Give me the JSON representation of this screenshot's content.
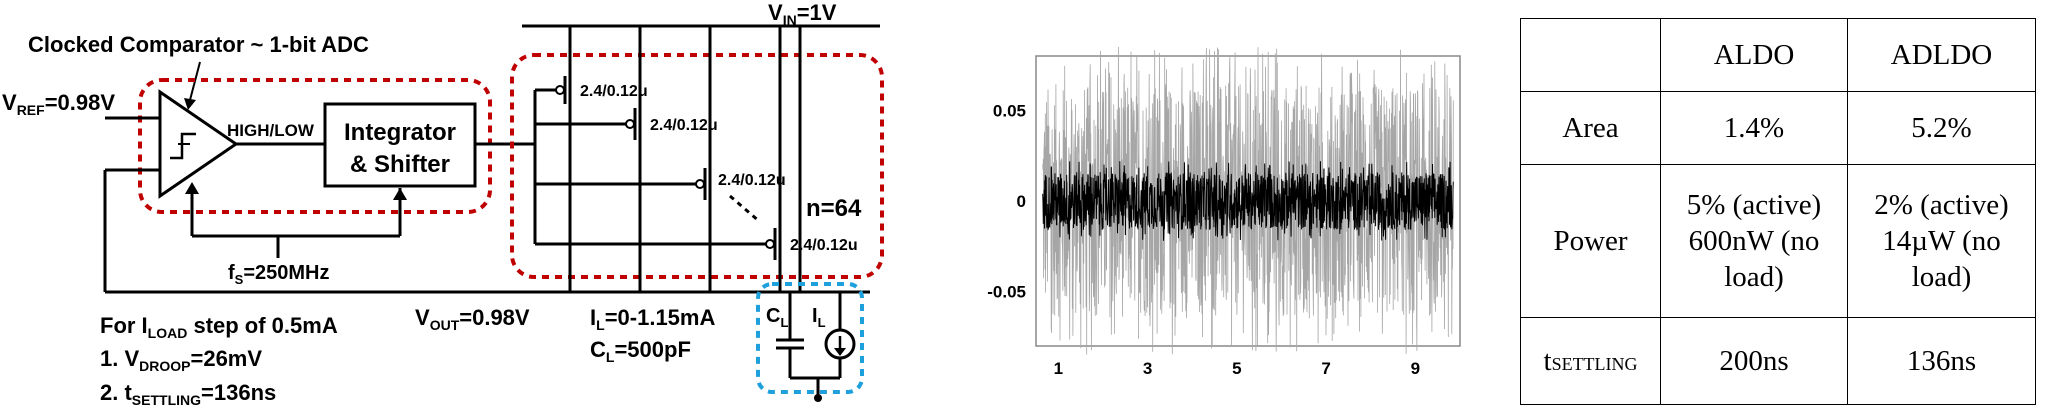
{
  "circuit": {
    "comparator_title": "Clocked Comparator ~ 1-bit ADC",
    "vref": {
      "main": "V",
      "sub": "REF",
      "value": "=0.98V"
    },
    "high_low": "HIGH/LOW",
    "integrator_line1": "Integrator",
    "integrator_line2": "& Shifter",
    "clock": {
      "main": "f",
      "sub": "S",
      "value": "=250MHz"
    },
    "vin": {
      "main": "V",
      "sub": "IN",
      "value": "=1V"
    },
    "transistor_size": "2.4/0.12u",
    "array_count": "n=64",
    "vout": {
      "main": "V",
      "sub": "OUT",
      "value": "=0.98V"
    },
    "il_range": {
      "main": "I",
      "sub": "L",
      "value": "=0-1.15mA"
    },
    "cl_value": {
      "main": "C",
      "sub": "L",
      "value": "=500pF"
    },
    "cl_label": {
      "main": "C",
      "sub": "L"
    },
    "il_label": {
      "main": "I",
      "sub": "L"
    },
    "load_step": {
      "pre": "For I",
      "sub": "LOAD",
      "post": " step of 0.5mA"
    },
    "droop": {
      "pre": "1. V",
      "sub": "DROOP",
      "post": "=26mV"
    },
    "settling": {
      "pre": "2. t",
      "sub": "SETTLING",
      "post": "=136ns"
    }
  },
  "colors": {
    "red_box": "#c00000",
    "blue_box": "#1ea0dc",
    "trace_light": "#a6a6a6",
    "trace_dark": "#000000"
  },
  "chart_data": {
    "type": "line",
    "title": "",
    "xlabel": "",
    "ylabel": "",
    "xlim": [
      0.5,
      10
    ],
    "ylim": [
      -0.08,
      0.08
    ],
    "xticks": [
      "1",
      "3",
      "5",
      "7",
      "9"
    ],
    "yticks": [
      "0.05",
      "0",
      "-0.05"
    ],
    "grid": false,
    "series": [
      {
        "color": "#a6a6a6",
        "band": [
          -0.065,
          0.065
        ],
        "peak": 0.085
      },
      {
        "color": "#000000",
        "band": [
          -0.016,
          0.016
        ],
        "peak": 0.022
      }
    ]
  },
  "table": {
    "header": [
      "",
      "ALDO",
      "ADLDO"
    ],
    "rows": [
      {
        "label": "Area",
        "aldo": "1.4%",
        "adldo": "5.2%"
      },
      {
        "label": "Power",
        "aldo": "5% (active) 600nW (no load)",
        "adldo": "2% (active) 14µW (no load)"
      },
      {
        "label_main": "t",
        "label_sub": "SETTLING",
        "aldo": "200ns",
        "adldo": "136ns"
      }
    ]
  }
}
